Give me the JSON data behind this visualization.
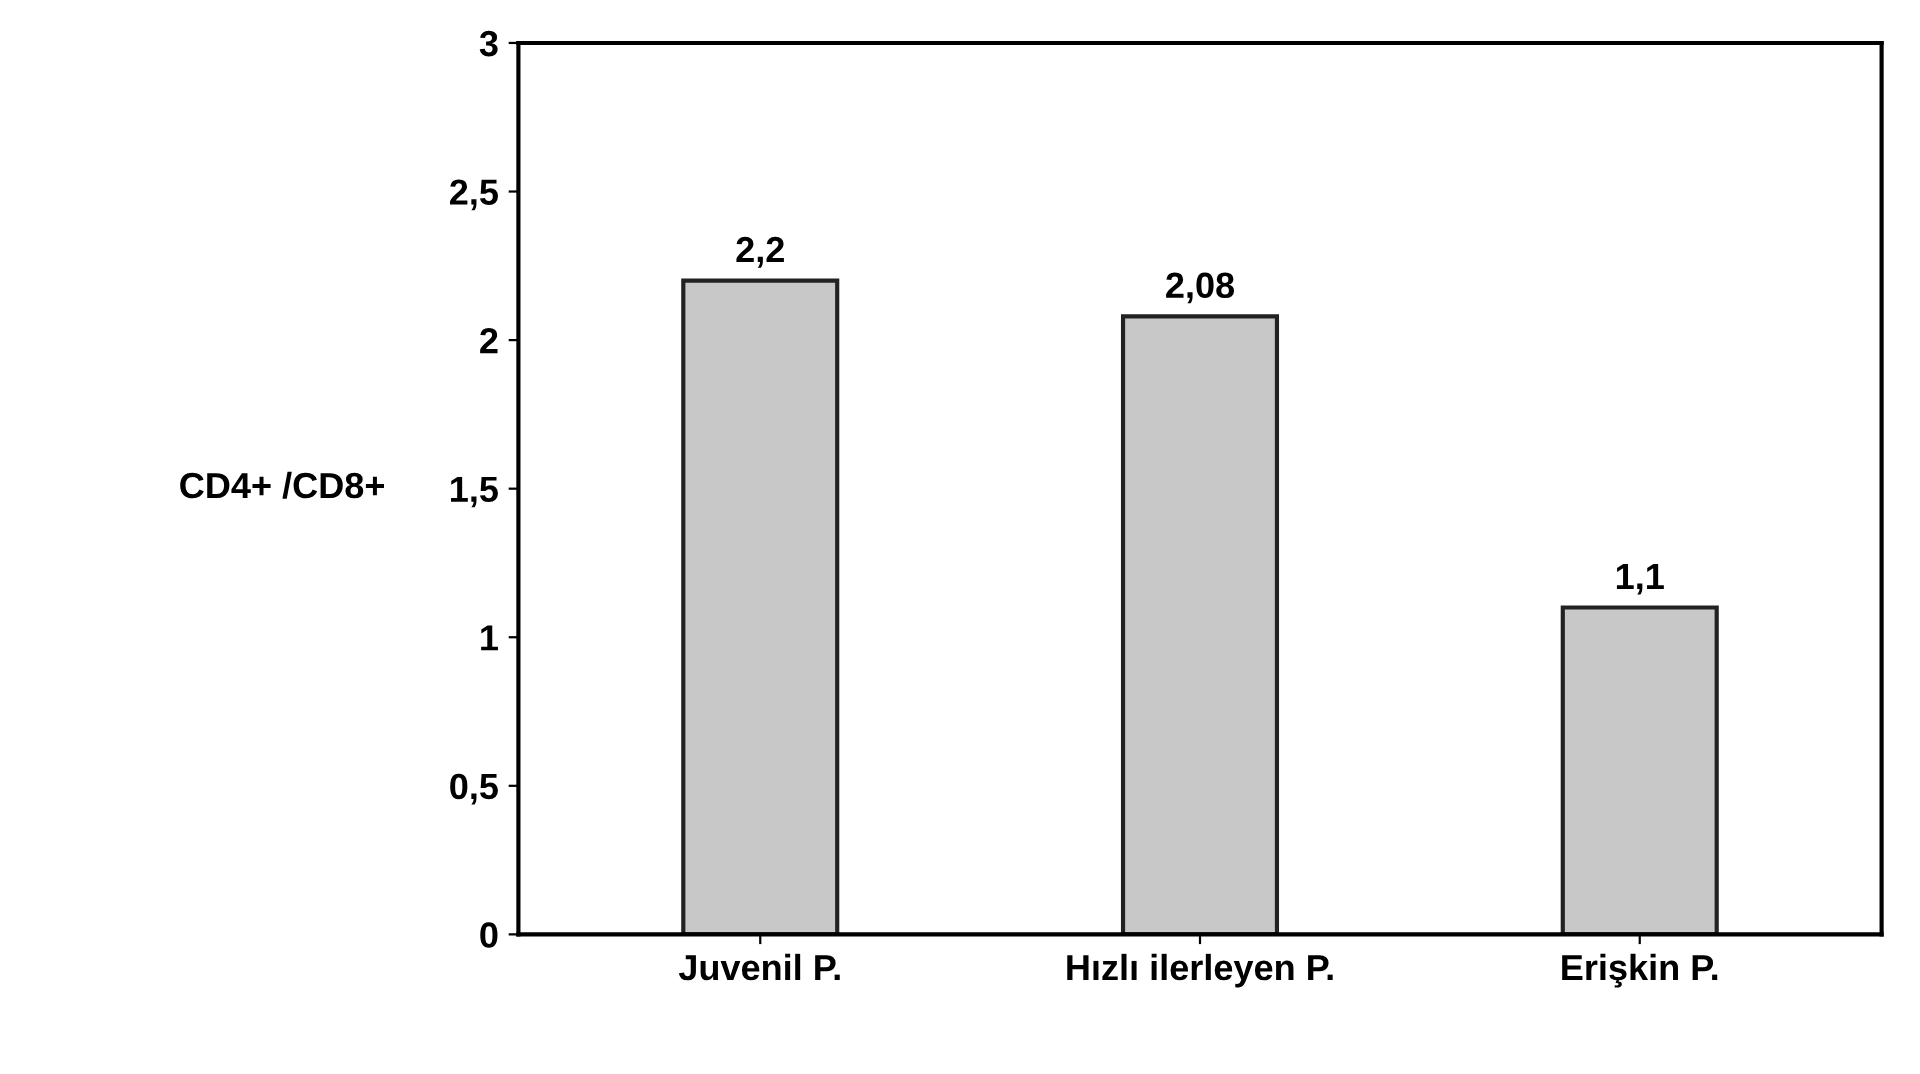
{
  "chart_data": {
    "type": "bar",
    "ylabel": "CD4+ /CD8+",
    "categories": [
      "Juvenil P.",
      "Hızlı ilerleyen P.",
      "Erişkin P."
    ],
    "values": [
      2.2,
      2.08,
      1.1
    ],
    "value_labels": [
      "2,2",
      "2,08",
      "1,1"
    ],
    "color": "#c8c8c8",
    "ylim": [
      0,
      3
    ],
    "yticks": [
      0,
      {
        "value": 0.5,
        "label": "0,5"
      },
      1,
      {
        "value": 1.5,
        "label": "1,5"
      },
      2,
      {
        "value": 2.5,
        "label": "2,5"
      },
      3
    ],
    "grid": false
  }
}
